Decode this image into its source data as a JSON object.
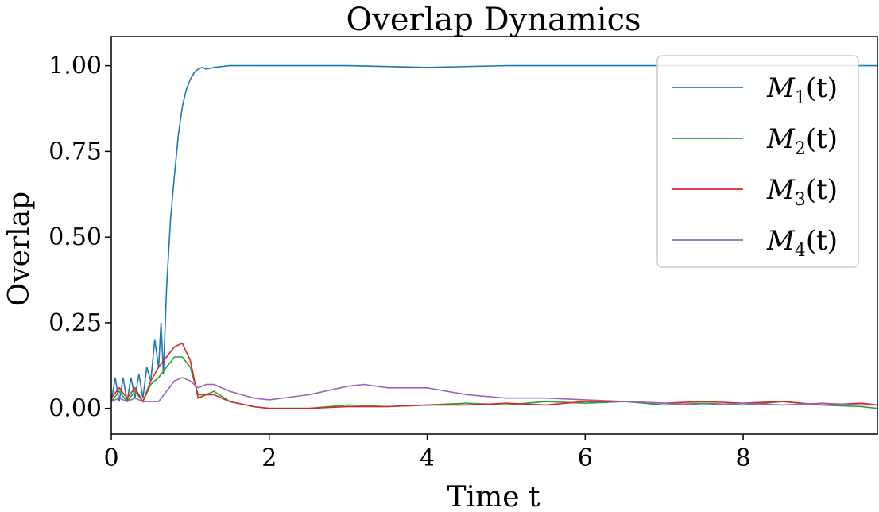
{
  "chart_data": {
    "type": "line",
    "title": "Overlap Dynamics",
    "xlabel": "Time t",
    "ylabel": "Overlap",
    "xlim": [
      0,
      9.7
    ],
    "ylim": [
      -0.075,
      1.085
    ],
    "xticks": [
      0,
      2,
      4,
      6,
      8
    ],
    "xtick_labels": [
      "0",
      "2",
      "4",
      "6",
      "8"
    ],
    "yticks": [
      0.0,
      0.25,
      0.5,
      0.75,
      1.0
    ],
    "ytick_labels": [
      "0.00",
      "0.25",
      "0.50",
      "0.75",
      "1.00"
    ],
    "grid": false,
    "legend_position": "top-right",
    "series": [
      {
        "name": "M1(t)",
        "legend_label": "M",
        "legend_sub": "1",
        "legend_suffix": "(t)",
        "color": "#1f77b4",
        "x": [
          0,
          0.05,
          0.1,
          0.15,
          0.2,
          0.25,
          0.3,
          0.35,
          0.4,
          0.45,
          0.5,
          0.55,
          0.6,
          0.63,
          0.66,
          0.7,
          0.75,
          0.8,
          0.85,
          0.9,
          0.95,
          1.0,
          1.05,
          1.1,
          1.15,
          1.2,
          1.3,
          1.5,
          2,
          3,
          4,
          5,
          6,
          7,
          8,
          9,
          9.7
        ],
        "y": [
          0.02,
          0.09,
          0.02,
          0.09,
          0.02,
          0.09,
          0.03,
          0.1,
          0.03,
          0.12,
          0.08,
          0.2,
          0.12,
          0.25,
          0.1,
          0.35,
          0.55,
          0.68,
          0.8,
          0.88,
          0.93,
          0.96,
          0.98,
          0.99,
          0.995,
          0.99,
          0.995,
          1.0,
          1.0,
          1.0,
          0.995,
          1.0,
          1.0,
          1.0,
          1.0,
          1.0,
          1.0
        ]
      },
      {
        "name": "M2(t)",
        "legend_label": "M",
        "legend_sub": "2",
        "legend_suffix": "(t)",
        "color": "#2ca02c",
        "x": [
          0,
          0.1,
          0.2,
          0.3,
          0.4,
          0.5,
          0.6,
          0.7,
          0.8,
          0.9,
          1.0,
          1.1,
          1.2,
          1.3,
          1.5,
          1.8,
          2.0,
          2.5,
          3.0,
          3.5,
          4.0,
          4.5,
          5.0,
          5.5,
          6.0,
          6.5,
          7.0,
          7.5,
          8.0,
          8.5,
          9.0,
          9.5,
          9.7
        ],
        "y": [
          0.02,
          0.05,
          0.02,
          0.05,
          0.02,
          0.07,
          0.09,
          0.12,
          0.15,
          0.15,
          0.12,
          0.04,
          0.04,
          0.05,
          0.02,
          0.005,
          0.0,
          0.0,
          0.01,
          0.005,
          0.01,
          0.015,
          0.01,
          0.02,
          0.015,
          0.02,
          0.01,
          0.015,
          0.01,
          0.02,
          0.01,
          0.005,
          0.0
        ]
      },
      {
        "name": "M3(t)",
        "legend_label": "M",
        "legend_sub": "3",
        "legend_suffix": "(t)",
        "color": "#d62728",
        "x": [
          0,
          0.1,
          0.2,
          0.3,
          0.4,
          0.5,
          0.6,
          0.7,
          0.8,
          0.9,
          1.0,
          1.1,
          1.2,
          1.3,
          1.5,
          1.8,
          2.0,
          2.5,
          3.0,
          3.5,
          4.0,
          4.5,
          5.0,
          5.5,
          6.0,
          6.5,
          7.0,
          7.5,
          8.0,
          8.5,
          9.0,
          9.5,
          9.7
        ],
        "y": [
          0.03,
          0.06,
          0.03,
          0.06,
          0.02,
          0.08,
          0.12,
          0.15,
          0.18,
          0.19,
          0.14,
          0.03,
          0.04,
          0.04,
          0.02,
          0.005,
          0.0,
          0.0,
          0.005,
          0.005,
          0.01,
          0.01,
          0.015,
          0.01,
          0.02,
          0.02,
          0.015,
          0.02,
          0.015,
          0.02,
          0.01,
          0.015,
          0.01
        ]
      },
      {
        "name": "M4(t)",
        "legend_label": "M",
        "legend_sub": "4",
        "legend_suffix": "(t)",
        "color": "#9467bd",
        "x": [
          0,
          0.1,
          0.2,
          0.3,
          0.4,
          0.5,
          0.6,
          0.7,
          0.8,
          0.9,
          1.0,
          1.1,
          1.2,
          1.3,
          1.5,
          1.8,
          2.0,
          2.5,
          3.0,
          3.2,
          3.5,
          4.0,
          4.5,
          5.0,
          5.5,
          6.0,
          6.5,
          7.0,
          7.5,
          8.0,
          8.5,
          9.0,
          9.5,
          9.7
        ],
        "y": [
          0.02,
          0.03,
          0.02,
          0.03,
          0.02,
          0.02,
          0.02,
          0.05,
          0.08,
          0.09,
          0.08,
          0.06,
          0.07,
          0.07,
          0.05,
          0.03,
          0.025,
          0.04,
          0.065,
          0.07,
          0.06,
          0.06,
          0.04,
          0.03,
          0.03,
          0.025,
          0.02,
          0.015,
          0.01,
          0.015,
          0.01,
          0.015,
          0.01,
          0.01
        ]
      }
    ]
  }
}
